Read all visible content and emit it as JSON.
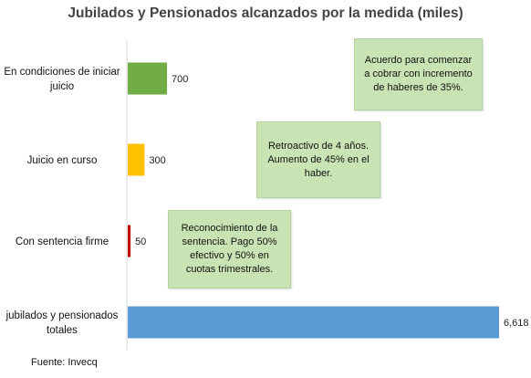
{
  "chart_data": {
    "type": "bar",
    "orientation": "horizontal",
    "title": "Jubilados y Pensionados alcanzados por la medida (miles)",
    "categories": [
      "En condiciones de iniciar juicio",
      "Juicio en curso",
      "Con sentencia firme",
      "jubilados y pensionados totales"
    ],
    "values": [
      700,
      300,
      50,
      6618
    ],
    "value_labels": [
      "700",
      "300",
      "50",
      "6,618"
    ],
    "colors": [
      "#70ad47",
      "#ffc000",
      "#c00000",
      "#5b9bd5"
    ],
    "xlim": [
      0,
      6618
    ],
    "grid": false
  },
  "annotations": [
    "Acuerdo para comenzar a cobrar con incremento de haberes de 35%.",
    "Retroactivo de 4 años. Aumento de 45% en el haber.",
    "Reconocimiento de la sentencia. Pago 50% efectivo y 50% en cuotas trimestrales."
  ],
  "source": "Fuente: Invecq"
}
